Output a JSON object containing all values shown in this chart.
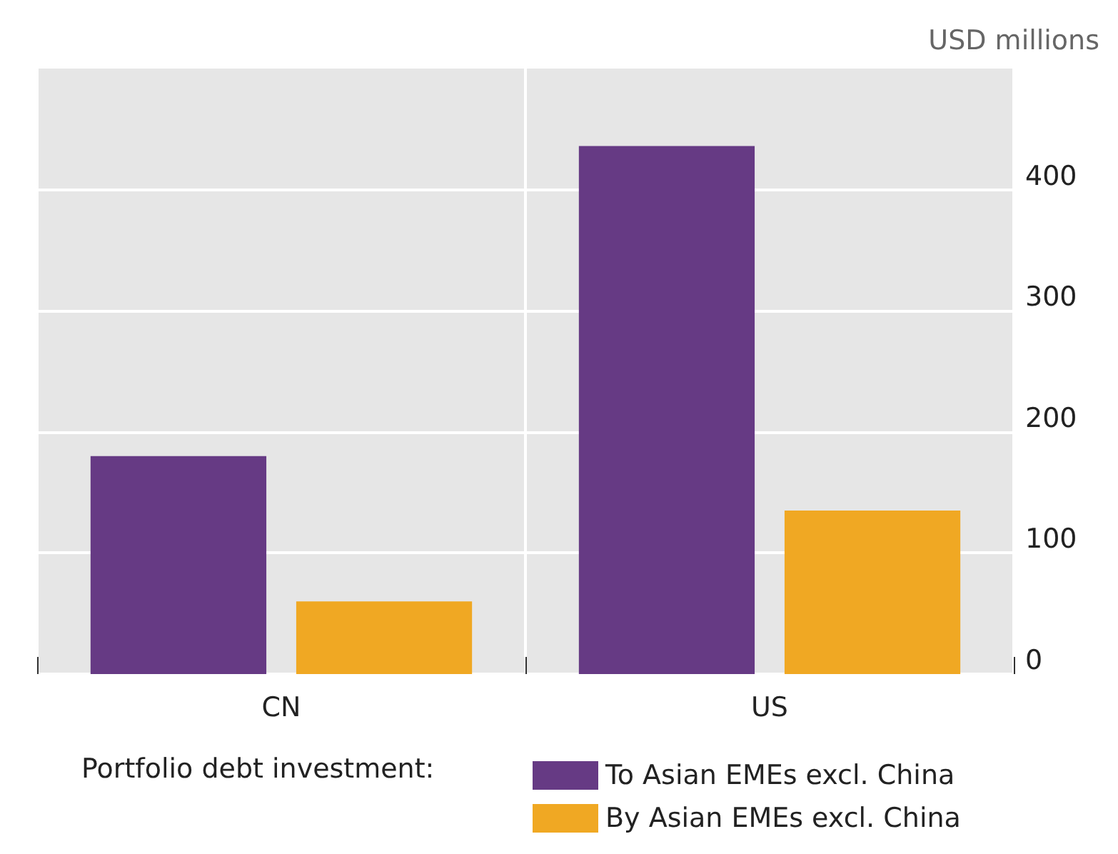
{
  "chart_data": {
    "type": "bar",
    "ylabel": "USD millions",
    "legend_title": "Portfolio debt investment:",
    "categories": [
      "CN",
      "US"
    ],
    "series": [
      {
        "name": "To Asian EMEs excl. China",
        "color": "#663a84",
        "values": [
          180,
          436
        ]
      },
      {
        "name": "By Asian EMEs excl. China",
        "color": "#f0a823",
        "values": [
          60,
          135
        ]
      }
    ],
    "ylim": [
      0,
      500
    ],
    "yticks": [
      0,
      100,
      200,
      300,
      400
    ],
    "grid": true,
    "legend": "bottom"
  }
}
